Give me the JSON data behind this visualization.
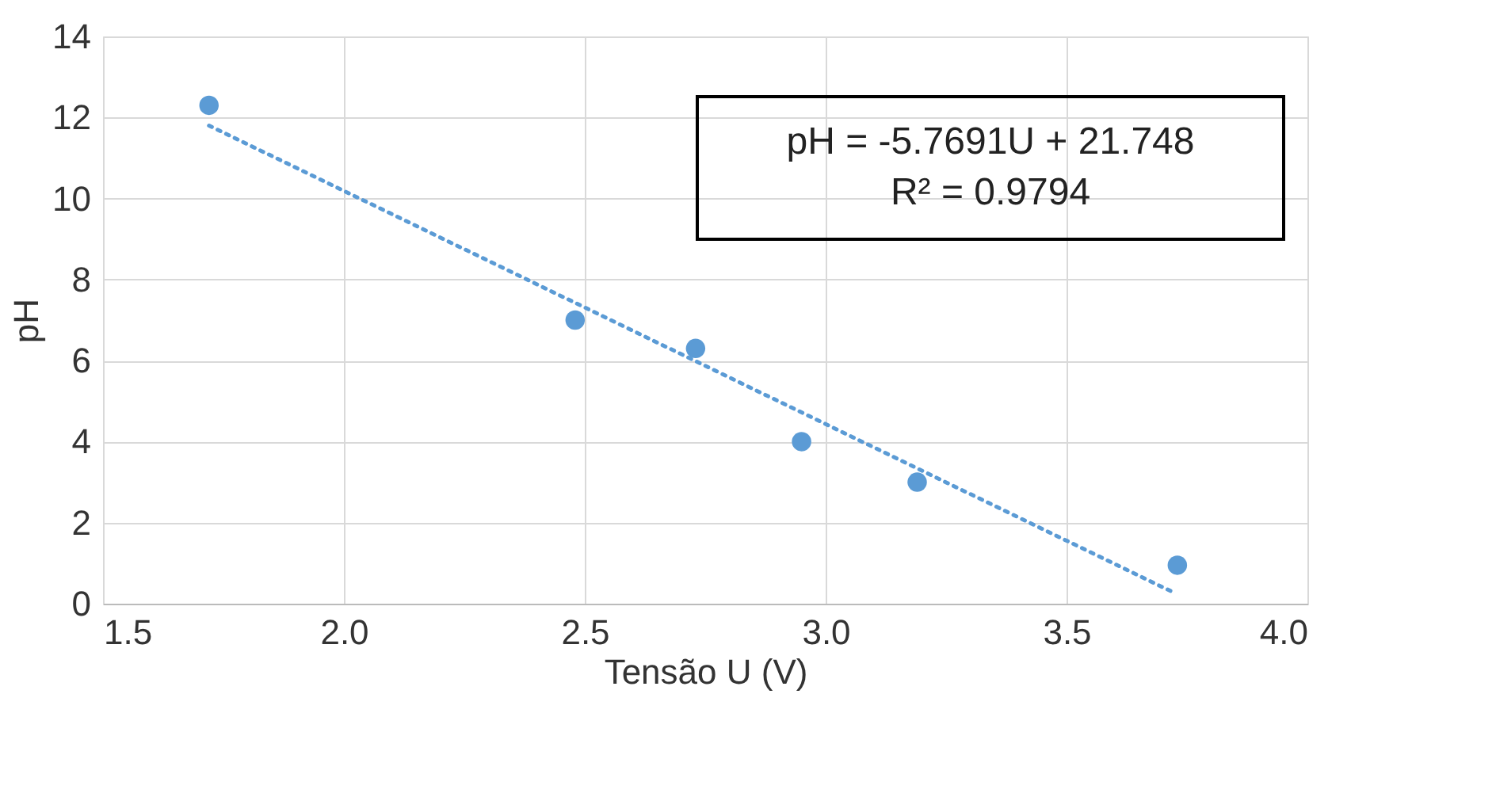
{
  "chart_data": {
    "type": "scatter",
    "xlabel": "Tensão U (V)",
    "ylabel": "pH",
    "xlim": [
      1.5,
      4.0
    ],
    "xticks": [
      {
        "value": 1.5,
        "label": "1.5"
      },
      {
        "value": 2.0,
        "label": "2.0"
      },
      {
        "value": 2.5,
        "label": "2.5"
      },
      {
        "value": 3.0,
        "label": "3.0"
      },
      {
        "value": 3.5,
        "label": "3.5"
      },
      {
        "value": 4.0,
        "label": "4.0"
      }
    ],
    "ylim": [
      0,
      14
    ],
    "yticks": [
      0,
      2,
      4,
      6,
      8,
      10,
      12,
      14
    ],
    "grid": true,
    "series": [
      {
        "marker": "circle",
        "color": "#5b9bd5",
        "x": [
          1.72,
          2.48,
          2.73,
          2.95,
          3.19,
          3.73
        ],
        "values": [
          12.3,
          7.0,
          6.3,
          4.0,
          3.0,
          0.95
        ]
      },
      {
        "type": "line",
        "color": "#5b9bd5",
        "line_style": "dotted",
        "x": [
          1.72,
          3.72
        ],
        "values": [
          11.8,
          0.29
        ]
      }
    ],
    "annotations": [
      "pH = -5.7691U + 21.748",
      "R² = 0.9794"
    ]
  }
}
